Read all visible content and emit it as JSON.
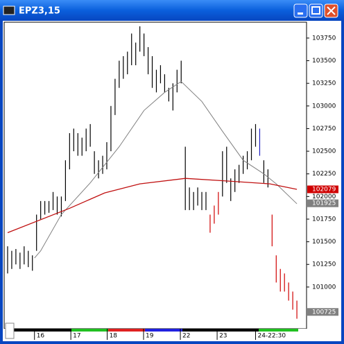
{
  "chart_data": {
    "type": "ohlc",
    "title": "EPZ3,15",
    "high": [
      101450,
      101400,
      101420,
      101380,
      101450,
      101400,
      101350,
      101800,
      101950,
      101950,
      101950,
      102050,
      102000,
      102000,
      102400,
      102700,
      102750,
      102700,
      102650,
      102750,
      102800,
      102500,
      102400,
      102450,
      102600,
      103000,
      103300,
      103500,
      103550,
      103600,
      103800,
      103700,
      103880,
      103800,
      103650,
      103550,
      103400,
      103450,
      103350,
      103200,
      103250,
      103400,
      103500,
      102550,
      102100,
      102050,
      102100,
      102050,
      102050,
      101800,
      101900,
      102050,
      102500,
      102550,
      102200,
      102300,
      102350,
      102450,
      102500,
      102750,
      102800,
      102750,
      102400,
      102300,
      101800,
      101350,
      101200,
      101150,
      101050,
      100950,
      100850
    ],
    "low": [
      101150,
      101200,
      101250,
      101200,
      101250,
      101220,
      101180,
      101400,
      101750,
      101800,
      101820,
      101850,
      101800,
      101780,
      101950,
      102300,
      102500,
      102450,
      102450,
      102500,
      102550,
      102250,
      102200,
      102250,
      102300,
      102500,
      102900,
      103200,
      103300,
      103350,
      103450,
      103450,
      103600,
      103550,
      103350,
      103200,
      103150,
      103250,
      103150,
      103050,
      102950,
      103150,
      103250,
      101850,
      101850,
      101850,
      101900,
      101850,
      101850,
      101600,
      101700,
      101800,
      102000,
      102150,
      101950,
      102050,
      102150,
      102250,
      102300,
      102400,
      102550,
      102450,
      102150,
      102100,
      101450,
      101050,
      100950,
      100950,
      100850,
      100750,
      100650
    ],
    "colors": [
      "#000",
      "#000",
      "#000",
      "#000",
      "#000",
      "#000",
      "#000",
      "#000",
      "#000",
      "#000",
      "#000",
      "#000",
      "#000",
      "#000",
      "#000",
      "#000",
      "#000",
      "#000",
      "#000",
      "#000",
      "#000",
      "#000",
      "#000",
      "#000",
      "#000",
      "#000",
      "#000",
      "#000",
      "#000",
      "#000",
      "#000",
      "#000",
      "#000",
      "#000",
      "#000",
      "#000",
      "#000",
      "#000",
      "#000",
      "#000",
      "#000",
      "#000",
      "#000",
      "#000",
      "#000",
      "#000",
      "#000",
      "#000",
      "#000",
      "#d00000",
      "#d00000",
      "#d00000",
      "#000",
      "#000",
      "#000",
      "#000",
      "#000",
      "#000",
      "#000",
      "#000",
      "#000",
      "#2020c0",
      "#000",
      "#000",
      "#d00000",
      "#d00000",
      "#d00000",
      "#d00000",
      "#d00000",
      "#d00000",
      "#d00000"
    ],
    "lines": [
      {
        "color": "#808080",
        "x": [
          6.5,
          8,
          13,
          20,
          27,
          33,
          38,
          42,
          47,
          52,
          57,
          62,
          65,
          70
        ],
        "values": [
          101320,
          101400,
          101800,
          102150,
          102550,
          102950,
          103150,
          103270,
          103050,
          102720,
          102400,
          102250,
          102140,
          101920
        ]
      },
      {
        "color": "#c01010",
        "x": [
          0,
          15,
          23.5,
          32,
          43,
          53.5,
          63.5,
          70
        ],
        "values": [
          101600,
          101870,
          102040,
          102140,
          102200,
          102170,
          102140,
          102079
        ]
      }
    ],
    "xlim": [
      -0.5,
      71.5
    ],
    "xticks": [
      {
        "value": 6.5,
        "label": "16"
      },
      {
        "value": 15.3,
        "label": "17"
      },
      {
        "value": 24.1,
        "label": "18"
      },
      {
        "value": 32.9,
        "label": "19"
      },
      {
        "value": 41.8,
        "label": "22"
      },
      {
        "value": 50.7,
        "label": "23"
      },
      {
        "value": 60,
        "label": "24-22:30"
      }
    ],
    "ylim": [
      100570,
      103910
    ],
    "yticks": [
      103750,
      103500,
      103250,
      103000,
      102750,
      102500,
      102250,
      102000,
      101750,
      101500,
      101250,
      101000
    ],
    "markers": [
      {
        "value": 102079,
        "color": "#d00000"
      },
      {
        "value": 101925,
        "color": "#808080"
      },
      {
        "value": 100725,
        "color": "#808080"
      }
    ]
  }
}
